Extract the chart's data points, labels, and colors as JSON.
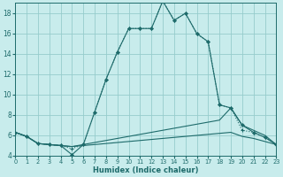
{
  "xlabel": "Humidex (Indice chaleur)",
  "bg_color": "#c8ecec",
  "line_color": "#1e6b6b",
  "grid_color": "#96cccc",
  "xlim": [
    0,
    23
  ],
  "ylim": [
    4,
    19
  ],
  "xticks": [
    0,
    1,
    2,
    3,
    4,
    5,
    6,
    7,
    8,
    9,
    10,
    11,
    12,
    13,
    14,
    15,
    16,
    17,
    18,
    19,
    20,
    21,
    22,
    23
  ],
  "yticks": [
    4,
    6,
    8,
    10,
    12,
    14,
    16,
    18
  ],
  "line_dotted_plus": {
    "x": [
      0,
      1,
      2,
      3,
      4,
      5,
      6,
      7,
      8,
      9,
      10,
      11,
      12,
      13,
      14,
      15,
      16,
      17,
      18,
      19,
      20,
      21,
      22,
      23
    ],
    "y": [
      6.3,
      5.9,
      5.2,
      5.1,
      5.0,
      4.7,
      5.1,
      8.3,
      11.5,
      14.2,
      16.5,
      16.5,
      16.5,
      19.2,
      17.3,
      18.0,
      16.0,
      15.2,
      9.0,
      8.7,
      6.5,
      6.3,
      5.8,
      5.1
    ]
  },
  "line_solid_diamond": {
    "x": [
      0,
      1,
      2,
      3,
      4,
      5,
      6,
      7,
      8,
      9,
      10,
      11,
      12,
      13,
      14,
      15,
      16,
      17,
      18,
      19,
      20,
      21,
      22,
      23
    ],
    "y": [
      6.3,
      5.9,
      5.2,
      5.1,
      5.0,
      4.1,
      5.1,
      8.3,
      11.5,
      14.2,
      16.5,
      16.5,
      16.5,
      19.2,
      17.3,
      18.0,
      16.0,
      15.2,
      9.0,
      8.7,
      7.0,
      6.3,
      5.8,
      5.1
    ]
  },
  "line_flat_high": {
    "x": [
      0,
      1,
      2,
      3,
      4,
      5,
      6,
      7,
      8,
      9,
      10,
      11,
      12,
      13,
      14,
      15,
      16,
      17,
      18,
      19,
      20,
      21,
      22,
      23
    ],
    "y": [
      6.3,
      5.9,
      5.2,
      5.1,
      5.0,
      4.9,
      5.1,
      5.3,
      5.5,
      5.7,
      5.9,
      6.1,
      6.3,
      6.5,
      6.7,
      6.9,
      7.1,
      7.3,
      7.5,
      8.7,
      7.0,
      6.5,
      6.0,
      5.1
    ]
  },
  "line_flat_low": {
    "x": [
      0,
      1,
      2,
      3,
      4,
      5,
      6,
      7,
      8,
      9,
      10,
      11,
      12,
      13,
      14,
      15,
      16,
      17,
      18,
      19,
      20,
      21,
      22,
      23
    ],
    "y": [
      6.3,
      5.9,
      5.2,
      5.1,
      5.0,
      4.9,
      5.0,
      5.1,
      5.2,
      5.3,
      5.4,
      5.5,
      5.6,
      5.7,
      5.8,
      5.9,
      6.0,
      6.1,
      6.2,
      6.3,
      5.9,
      5.7,
      5.4,
      5.1
    ]
  }
}
